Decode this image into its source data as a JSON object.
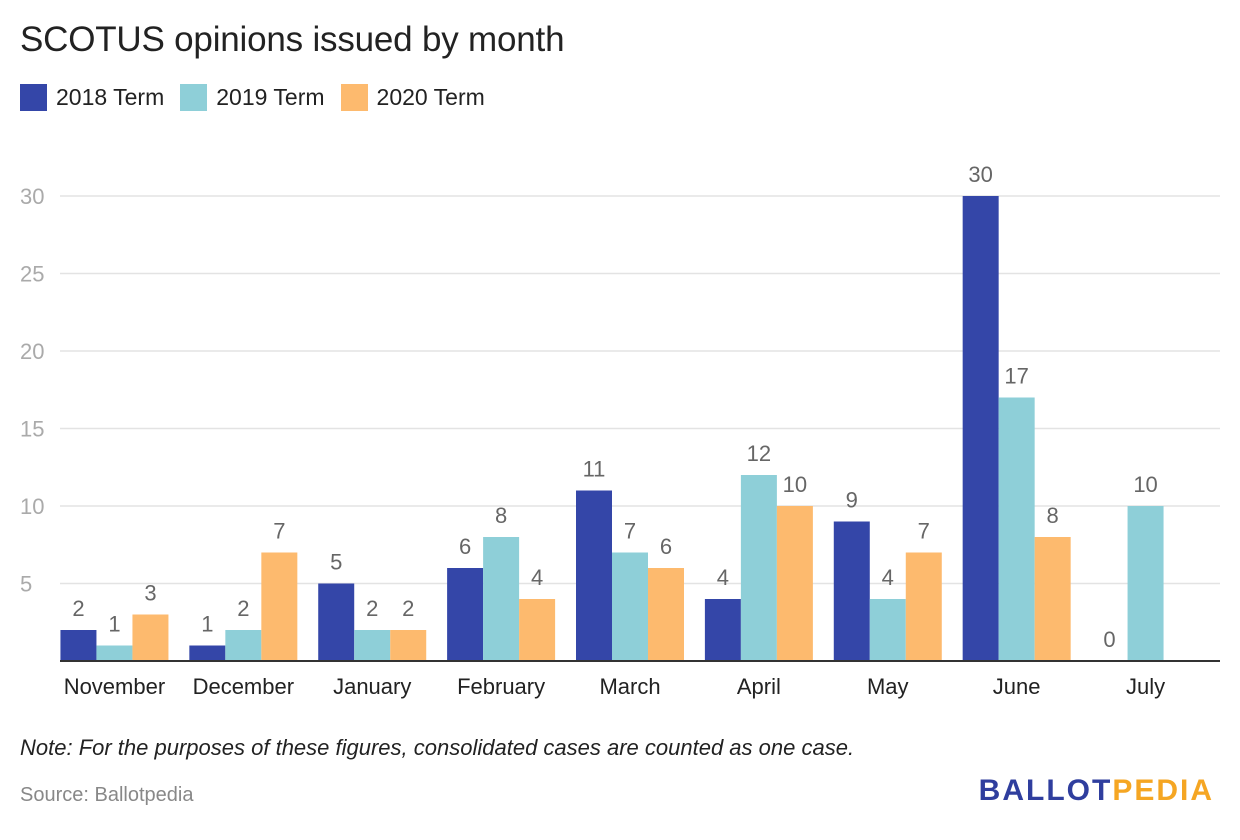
{
  "title": "SCOTUS opinions issued by month",
  "note": "Note: For the purposes of these figures, consolidated cases are counted as one case.",
  "source": "Source: Ballotpedia",
  "logo": {
    "part1": "BALLOT",
    "part2": "PEDIA"
  },
  "chart_data": {
    "type": "bar",
    "title": "SCOTUS opinions issued by month",
    "categories": [
      "November",
      "December",
      "January",
      "February",
      "March",
      "April",
      "May",
      "June",
      "July"
    ],
    "series": [
      {
        "name": "2018 Term",
        "color": "#3446a8",
        "values": [
          2,
          1,
          5,
          6,
          11,
          4,
          9,
          30,
          0
        ]
      },
      {
        "name": "2019 Term",
        "color": "#8ecfd8",
        "values": [
          1,
          2,
          2,
          8,
          7,
          12,
          4,
          17,
          10
        ]
      },
      {
        "name": "2020 Term",
        "color": "#fdba6e",
        "values": [
          3,
          7,
          2,
          4,
          6,
          10,
          7,
          8,
          null
        ]
      }
    ],
    "yticks": [
      5,
      10,
      15,
      20,
      25,
      30
    ],
    "ylim": [
      0,
      30
    ],
    "grid": true,
    "legend_position": "top-left",
    "xlabel": "",
    "ylabel": ""
  }
}
